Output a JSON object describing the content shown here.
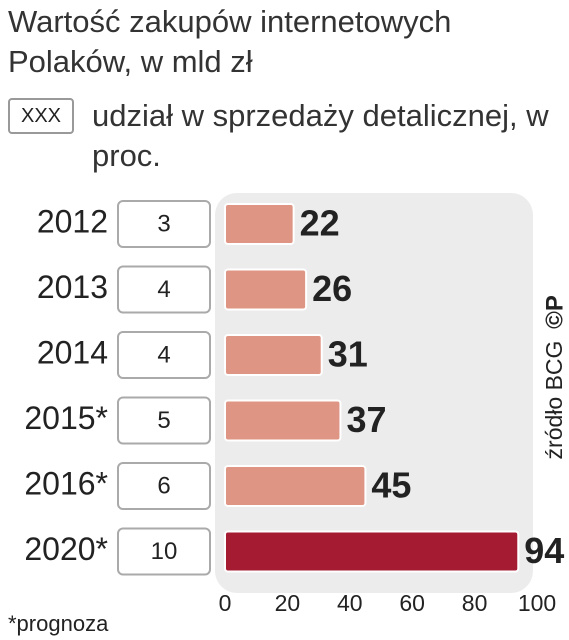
{
  "chart_data": {
    "type": "bar",
    "title": "Wartość zakupów internetowych Polaków, w mld zł",
    "categories": [
      "2012",
      "2013",
      "2014",
      "2015*",
      "2016*",
      "2020*"
    ],
    "values": [
      22,
      26,
      31,
      37,
      45,
      94
    ],
    "colors": [
      "#df9583",
      "#df9583",
      "#df9583",
      "#df9583",
      "#df9583",
      "#a51c32"
    ],
    "share": {
      "name": "udział w sprzedaży detalicznej, w proc.",
      "sample": "XXX",
      "values": [
        3,
        4,
        4,
        5,
        6,
        10
      ]
    },
    "xlim": [
      0,
      100
    ],
    "xticks": [
      0,
      20,
      40,
      60,
      80,
      100
    ],
    "source": "źródło BCG",
    "logo": "©P",
    "footnote": "*prognoza"
  }
}
